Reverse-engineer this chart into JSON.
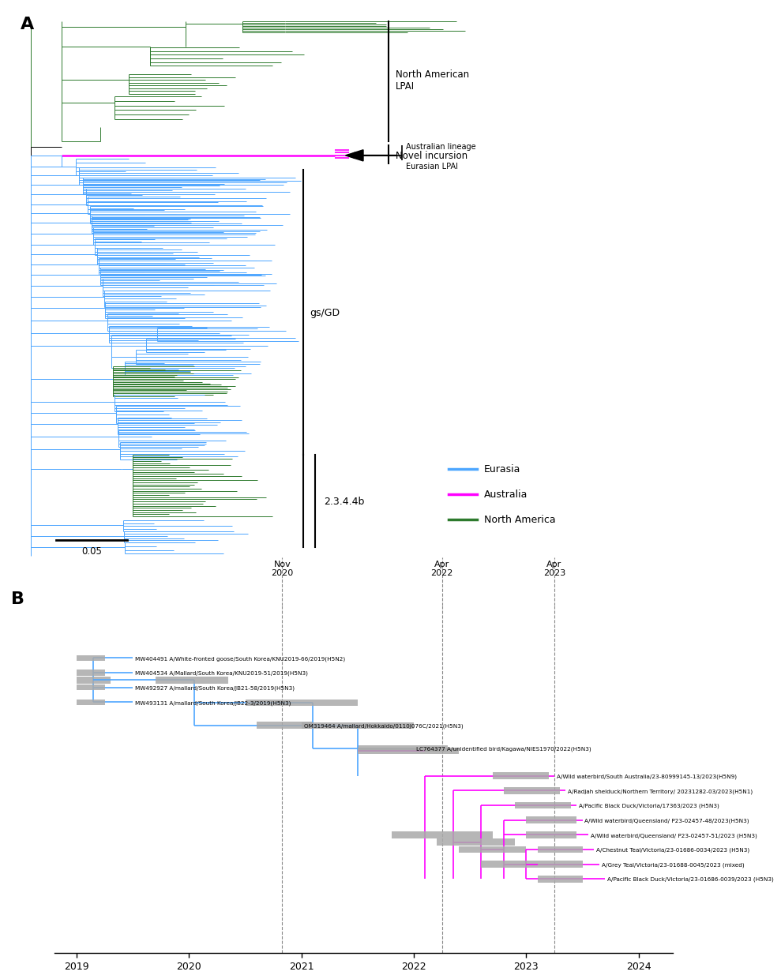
{
  "colors": {
    "eurasia": "#4da6ff",
    "australia": "#ff00ff",
    "north_america": "#2d7a2d",
    "black": "#000000",
    "gray": "#888888"
  },
  "legend_entries": [
    {
      "label": "Eurasia",
      "color": "#4da6ff"
    },
    {
      "label": "Australia",
      "color": "#ff00ff"
    },
    {
      "label": "North America",
      "color": "#2d7a2d"
    }
  ],
  "scale_bar_label": "0.05",
  "panel_b_taxa": [
    {
      "name": "MW404491 A/White-fronted goose/South Korea/KNU2019-66/2019(H5N2)",
      "color": "#4da6ff"
    },
    {
      "name": "MW404534 A/Mallard/South Korea/KNU2019-51/2019(H5N3)",
      "color": "#4da6ff"
    },
    {
      "name": "MW492927 A/mallard/South Korea/JB21-58/2019(H5N3)",
      "color": "#4da6ff"
    },
    {
      "name": "MW493131 A/mallard/South Korea/JB22-3/2019(H5N3)",
      "color": "#4da6ff"
    },
    {
      "name": "OM319464 A/mallard/Hokkaido/0110J076C/2021(H5N3)",
      "color": "#4da6ff"
    },
    {
      "name": "LC764377 A/unidentified bird/Kagawa/NIES1970/2022(H5N3)",
      "color": "#4da6ff"
    },
    {
      "name": "A/Wild waterbird/South Australia/23-80999145-13/2023(H5N9)",
      "color": "#ff00ff"
    },
    {
      "name": "A/Radjah shelduck/Northern Territory/ 20231282-03/2023(H5N1)",
      "color": "#ff00ff"
    },
    {
      "name": "A/Pacific Black Duck/Victoria/17363/2023 (H5N3)",
      "color": "#ff00ff"
    },
    {
      "name": "A/Wild waterbird/Queensland/ P23-02457-48/2023(H5N3)",
      "color": "#ff00ff"
    },
    {
      "name": "A/Wild waterbird/Queensland/ P23-02457-51/2023 (H5N3)",
      "color": "#ff00ff"
    },
    {
      "name": "A/Chestnut Teal/Victoria/23-01686-0034/2023 (H5N3)",
      "color": "#ff00ff"
    },
    {
      "name": "A/Grey Teal/Victoria/23-01688-0045/2023 (mixed)",
      "color": "#ff00ff"
    },
    {
      "name": "A/Pacific Black Duck/Victoria/23-01686-0039/2023 (H5N3)",
      "color": "#ff00ff"
    }
  ],
  "panel_b_dashed_lines": [
    {
      "x": 2020.83,
      "label_line1": "Nov",
      "label_line2": "2020"
    },
    {
      "x": 2022.25,
      "label_line1": "Apr",
      "label_line2": "2022"
    },
    {
      "x": 2023.25,
      "label_line1": "Apr",
      "label_line2": "2023"
    }
  ],
  "panel_b_xrange": [
    2018.8,
    2024.3
  ],
  "panel_b_xlabels": [
    2019,
    2020,
    2021,
    2022,
    2023,
    2024
  ],
  "annotation_line1": "Australian lineage",
  "annotation_line2": "Eurasian LPAI",
  "clade_na_lpai": "North American\nLPAI",
  "clade_novel": "Novel incursion",
  "clade_gsgd": "gs/GD",
  "clade_2344b": "2.3.4.4b"
}
